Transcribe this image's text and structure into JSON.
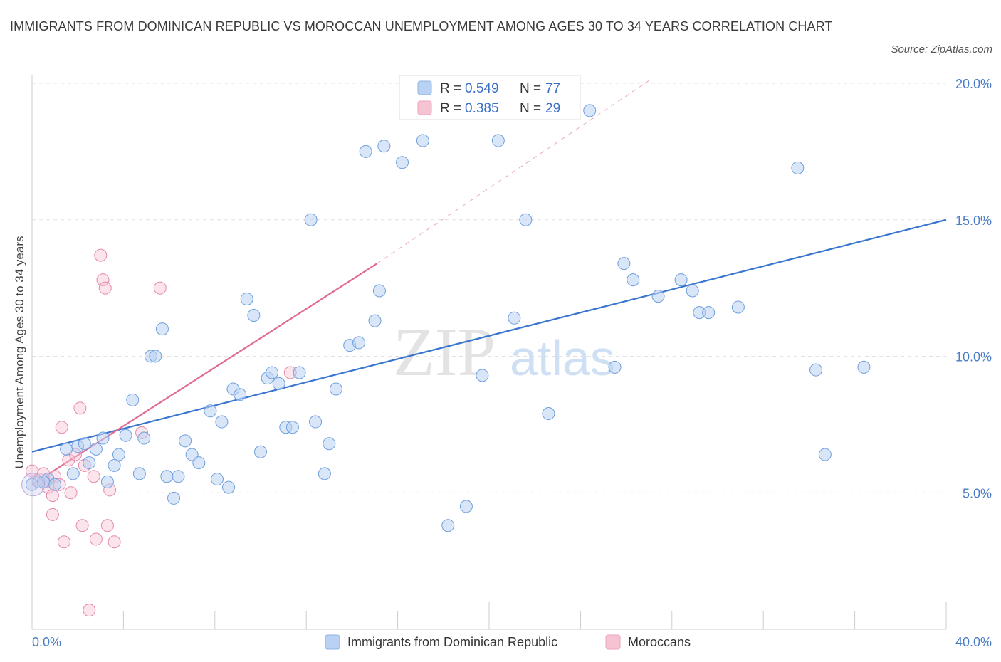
{
  "title": "IMMIGRANTS FROM DOMINICAN REPUBLIC VS MOROCCAN UNEMPLOYMENT AMONG AGES 30 TO 34 YEARS CORRELATION CHART",
  "source": "Source: ZipAtlas.com",
  "watermark": {
    "zip": "ZIP",
    "atlas": "atlas"
  },
  "colors": {
    "blue": "#5b8fd9",
    "blue_fill": "#b9d2f3",
    "pink": "#e07098",
    "pink_fill": "#f6c3d3",
    "axis_text": "#4a7cc7"
  },
  "legend": {
    "r_label": "R =",
    "n_label": "N =",
    "entries": [
      {
        "r": "0.549",
        "n": "77"
      },
      {
        "r": "0.385",
        "n": "29"
      }
    ]
  },
  "chart_data": {
    "type": "scatter",
    "title": "IMMIGRANTS FROM DOMINICAN REPUBLIC VS MOROCCAN UNEMPLOYMENT AMONG AGES 30 TO 34 YEARS CORRELATION CHART",
    "xlabel": "",
    "ylabel": "Unemployment Among Ages 30 to 34 years",
    "xlim": [
      0,
      40
    ],
    "ylim": [
      0,
      20
    ],
    "x_tick_labels": [
      "0.0%",
      "40.0%"
    ],
    "y_ticks": [
      5,
      10,
      15,
      20
    ],
    "y_tick_labels": [
      "5.0%",
      "10.0%",
      "15.0%",
      "20.0%"
    ],
    "grid": true,
    "legend_position": "top-center",
    "series": [
      {
        "name": "Immigrants from Dominican Republic",
        "color": "#5b8fd9",
        "r": 0.549,
        "n": 77,
        "trend": {
          "x": [
            0,
            40
          ],
          "y": [
            6.5,
            15.0
          ]
        },
        "points": [
          [
            0.0,
            5.3
          ],
          [
            0.3,
            5.4
          ],
          [
            0.7,
            5.5
          ],
          [
            1.0,
            5.3
          ],
          [
            1.5,
            6.6
          ],
          [
            1.8,
            5.7
          ],
          [
            2.0,
            6.7
          ],
          [
            2.3,
            6.8
          ],
          [
            2.5,
            6.1
          ],
          [
            2.8,
            6.6
          ],
          [
            3.1,
            7.0
          ],
          [
            3.3,
            5.4
          ],
          [
            3.6,
            6.0
          ],
          [
            3.8,
            6.4
          ],
          [
            4.1,
            7.1
          ],
          [
            4.4,
            8.4
          ],
          [
            4.7,
            5.7
          ],
          [
            4.9,
            7.0
          ],
          [
            5.2,
            10.0
          ],
          [
            5.4,
            10.0
          ],
          [
            5.7,
            11.0
          ],
          [
            5.9,
            5.6
          ],
          [
            6.2,
            4.8
          ],
          [
            6.4,
            5.6
          ],
          [
            6.7,
            6.9
          ],
          [
            7.0,
            6.4
          ],
          [
            7.3,
            6.1
          ],
          [
            7.8,
            8.0
          ],
          [
            8.1,
            5.5
          ],
          [
            8.3,
            7.6
          ],
          [
            8.6,
            5.2
          ],
          [
            8.8,
            8.8
          ],
          [
            9.1,
            8.6
          ],
          [
            9.4,
            12.1
          ],
          [
            9.7,
            11.5
          ],
          [
            10.0,
            6.5
          ],
          [
            10.3,
            9.2
          ],
          [
            10.5,
            9.4
          ],
          [
            10.8,
            9.0
          ],
          [
            11.1,
            7.4
          ],
          [
            11.4,
            7.4
          ],
          [
            11.7,
            9.4
          ],
          [
            12.2,
            15.0
          ],
          [
            12.4,
            7.6
          ],
          [
            12.8,
            5.7
          ],
          [
            13.0,
            6.8
          ],
          [
            13.3,
            8.8
          ],
          [
            13.9,
            10.4
          ],
          [
            14.3,
            10.5
          ],
          [
            14.6,
            17.5
          ],
          [
            15.0,
            11.3
          ],
          [
            15.2,
            12.4
          ],
          [
            15.4,
            17.7
          ],
          [
            16.2,
            17.1
          ],
          [
            17.1,
            17.9
          ],
          [
            18.2,
            3.8
          ],
          [
            19.0,
            4.5
          ],
          [
            19.7,
            9.3
          ],
          [
            20.4,
            17.9
          ],
          [
            21.1,
            11.4
          ],
          [
            21.6,
            15.0
          ],
          [
            22.6,
            7.9
          ],
          [
            24.4,
            19.0
          ],
          [
            25.5,
            9.6
          ],
          [
            25.9,
            13.4
          ],
          [
            26.3,
            12.8
          ],
          [
            27.4,
            12.2
          ],
          [
            28.4,
            12.8
          ],
          [
            28.9,
            12.4
          ],
          [
            29.2,
            11.6
          ],
          [
            29.6,
            11.6
          ],
          [
            30.9,
            11.8
          ],
          [
            33.5,
            16.9
          ],
          [
            34.3,
            9.5
          ],
          [
            34.7,
            6.4
          ],
          [
            36.4,
            9.6
          ],
          [
            0.5,
            5.4
          ]
        ]
      },
      {
        "name": "Moroccans",
        "color": "#e07098",
        "r": 0.385,
        "n": 29,
        "trend": {
          "x": [
            0,
            15.1
          ],
          "y": [
            5.3,
            13.4
          ]
        },
        "trend_ext": {
          "x": [
            15.1,
            27
          ],
          "y": [
            13.4,
            20.1
          ]
        },
        "points": [
          [
            0.0,
            5.8
          ],
          [
            0.3,
            5.5
          ],
          [
            0.5,
            5.7
          ],
          [
            0.6,
            5.4
          ],
          [
            0.7,
            5.2
          ],
          [
            0.9,
            4.9
          ],
          [
            0.9,
            4.2
          ],
          [
            1.0,
            5.6
          ],
          [
            1.2,
            5.3
          ],
          [
            1.3,
            7.4
          ],
          [
            1.4,
            3.2
          ],
          [
            1.6,
            6.2
          ],
          [
            1.7,
            5.0
          ],
          [
            1.9,
            6.4
          ],
          [
            2.1,
            8.1
          ],
          [
            2.2,
            3.8
          ],
          [
            2.3,
            6.0
          ],
          [
            2.5,
            0.7
          ],
          [
            2.7,
            5.6
          ],
          [
            2.8,
            3.3
          ],
          [
            3.0,
            13.7
          ],
          [
            3.1,
            12.8
          ],
          [
            3.2,
            12.5
          ],
          [
            3.3,
            3.8
          ],
          [
            3.4,
            5.1
          ],
          [
            3.6,
            3.2
          ],
          [
            4.8,
            7.2
          ],
          [
            5.6,
            12.5
          ],
          [
            11.3,
            9.4
          ]
        ]
      }
    ]
  }
}
